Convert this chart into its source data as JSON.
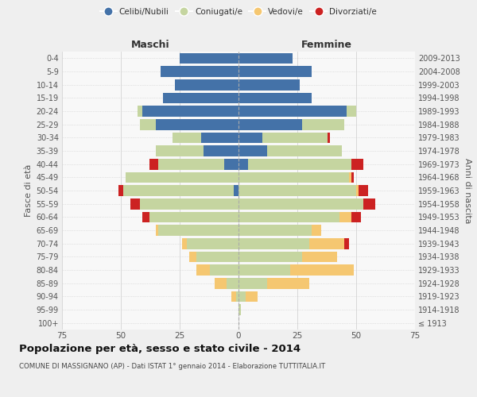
{
  "age_groups": [
    "100+",
    "95-99",
    "90-94",
    "85-89",
    "80-84",
    "75-79",
    "70-74",
    "65-69",
    "60-64",
    "55-59",
    "50-54",
    "45-49",
    "40-44",
    "35-39",
    "30-34",
    "25-29",
    "20-24",
    "15-19",
    "10-14",
    "5-9",
    "0-4"
  ],
  "birth_years": [
    "≤ 1913",
    "1914-1918",
    "1919-1923",
    "1924-1928",
    "1929-1933",
    "1934-1938",
    "1939-1943",
    "1944-1948",
    "1949-1953",
    "1954-1958",
    "1959-1963",
    "1964-1968",
    "1969-1973",
    "1974-1978",
    "1979-1983",
    "1984-1988",
    "1989-1993",
    "1994-1998",
    "1999-2003",
    "2004-2008",
    "2009-2013"
  ],
  "maschi": {
    "celibi": [
      0,
      0,
      0,
      0,
      0,
      0,
      0,
      0,
      0,
      0,
      2,
      0,
      6,
      15,
      16,
      35,
      41,
      32,
      27,
      33,
      25
    ],
    "coniugati": [
      0,
      0,
      1,
      5,
      12,
      18,
      22,
      34,
      38,
      42,
      47,
      48,
      28,
      20,
      12,
      7,
      2,
      0,
      0,
      0,
      0
    ],
    "vedovi": [
      0,
      0,
      2,
      5,
      6,
      3,
      2,
      1,
      0,
      0,
      0,
      0,
      0,
      0,
      0,
      0,
      0,
      0,
      0,
      0,
      0
    ],
    "divorziati": [
      0,
      0,
      0,
      0,
      0,
      0,
      0,
      0,
      3,
      4,
      2,
      0,
      4,
      0,
      0,
      0,
      0,
      0,
      0,
      0,
      0
    ]
  },
  "femmine": {
    "nubili": [
      0,
      0,
      0,
      0,
      0,
      0,
      0,
      0,
      0,
      0,
      0,
      0,
      4,
      12,
      10,
      27,
      46,
      31,
      26,
      31,
      23
    ],
    "coniugate": [
      0,
      1,
      3,
      12,
      22,
      27,
      30,
      31,
      43,
      53,
      50,
      47,
      44,
      32,
      28,
      18,
      4,
      0,
      0,
      0,
      0
    ],
    "vedove": [
      0,
      0,
      5,
      18,
      27,
      15,
      15,
      4,
      5,
      0,
      1,
      1,
      0,
      0,
      0,
      0,
      0,
      0,
      0,
      0,
      0
    ],
    "divorziate": [
      0,
      0,
      0,
      0,
      0,
      0,
      2,
      0,
      4,
      5,
      4,
      1,
      5,
      0,
      1,
      0,
      0,
      0,
      0,
      0,
      0
    ]
  },
  "color_celibi": "#4472a8",
  "color_coniugati": "#c5d5a0",
  "color_vedovi": "#f5c771",
  "color_divorziati": "#cc2222",
  "xlim": 75,
  "title": "Popolazione per età, sesso e stato civile - 2014",
  "subtitle": "COMUNE DI MASSIGNANO (AP) - Dati ISTAT 1° gennaio 2014 - Elaborazione TUTTITALIA.IT",
  "ylabel_left": "Fasce di età",
  "ylabel_right": "Anni di nascita",
  "xlabel_maschi": "Maschi",
  "xlabel_femmine": "Femmine",
  "bg_color": "#efefef",
  "plot_bg_color": "#f8f8f8"
}
